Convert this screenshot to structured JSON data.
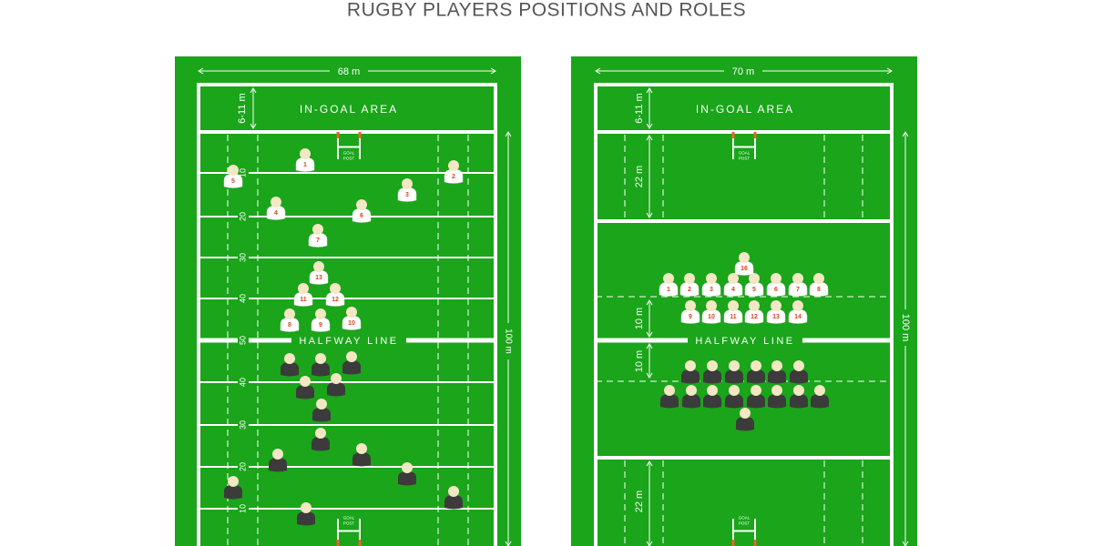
{
  "title": "RUGBY PLAYERS POSITIONS AND ROLES",
  "left_field": {
    "width_label": "68 m",
    "in_goal_depth": "6-11 m",
    "in_goal_label": "IN-GOAL AREA",
    "goal_post_label": [
      "GOAL",
      "POST"
    ],
    "distance_marks": [
      "10",
      "20",
      "30",
      "40",
      "50",
      "40",
      "30",
      "20",
      "10"
    ],
    "halfway_label": "HALFWAY LINE",
    "length_label": "100 m",
    "players": [
      "1",
      "2",
      "3",
      "4",
      "5",
      "6",
      "7",
      "8",
      "9",
      "10",
      "11",
      "12",
      "13"
    ]
  },
  "right_field": {
    "width_label": "70 m",
    "in_goal_depth": "6-11 m",
    "in_goal_label": "IN-GOAL AREA",
    "goal_post_label": [
      "GOAL",
      "POST"
    ],
    "top_22_label": "22 m",
    "ten_top_label": "10 m",
    "ten_bottom_label": "10 m",
    "bottom_22_label": "22 m",
    "halfway_label": "HALFWAY LINE",
    "length_label": "100 m",
    "players": [
      "1",
      "2",
      "3",
      "4",
      "5",
      "6",
      "7",
      "8",
      "9",
      "10",
      "11",
      "12",
      "13",
      "14",
      "16"
    ]
  }
}
